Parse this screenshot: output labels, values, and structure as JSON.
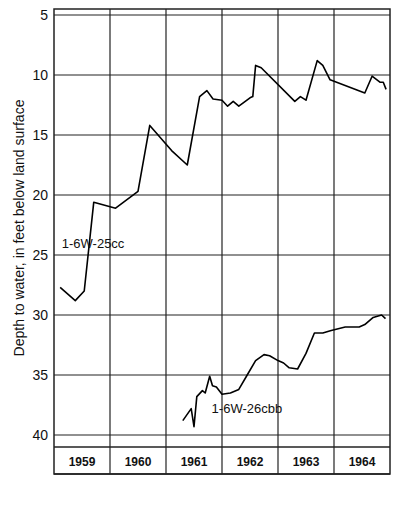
{
  "chart_data": {
    "type": "line",
    "y_label": "Depth to water, in feet below land surface",
    "xlim": [
      1959,
      1965
    ],
    "xticks": [
      {
        "value": 1959.5,
        "label": "1959"
      },
      {
        "value": 1960.5,
        "label": "1960"
      },
      {
        "value": 1961.5,
        "label": "1961"
      },
      {
        "value": 1962.5,
        "label": "1962"
      },
      {
        "value": 1963.5,
        "label": "1963"
      },
      {
        "value": 1964.5,
        "label": "1964"
      }
    ],
    "ylim": [
      41,
      4.5
    ],
    "yticks": [
      5,
      10,
      15,
      20,
      25,
      30,
      35,
      40
    ],
    "grid": true,
    "series": [
      {
        "name": "1-6W-25cc",
        "color": "#000000",
        "line_style": "solid",
        "x": [
          1959.11,
          1959.38,
          1959.54,
          1959.71,
          1960.1,
          1960.5,
          1960.71,
          1961.1,
          1961.38,
          1961.6,
          1961.73,
          1961.84,
          1962.0,
          1962.1,
          1962.2,
          1962.3,
          1962.5,
          1962.55,
          1962.6,
          1962.7,
          1963.3,
          1963.4,
          1963.5,
          1963.7,
          1963.8,
          1963.93,
          1964.55,
          1964.68,
          1964.82,
          1964.88,
          1964.93
        ],
        "values": [
          27.7,
          28.8,
          28.0,
          20.6,
          21.1,
          19.7,
          14.2,
          16.3,
          17.5,
          11.8,
          11.3,
          12.0,
          12.1,
          12.6,
          12.2,
          12.6,
          11.9,
          11.8,
          9.2,
          9.4,
          12.2,
          11.8,
          12.1,
          8.8,
          9.2,
          10.4,
          11.5,
          10.1,
          10.6,
          10.6,
          11.2
        ]
      },
      {
        "name": "1-6W-26cbb",
        "color": "#000000",
        "line_style": "solid",
        "x": [
          1961.3,
          1961.45,
          1961.5,
          1961.55,
          1961.65,
          1961.7,
          1961.78,
          1961.83,
          1961.9,
          1962.0,
          1962.15,
          1962.3,
          1962.45,
          1962.6,
          1962.75,
          1962.85,
          1963.0,
          1963.1,
          1963.2,
          1963.35,
          1963.5,
          1963.65,
          1963.8,
          1963.95,
          1964.2,
          1964.45,
          1964.55,
          1964.7,
          1964.85,
          1964.92
        ],
        "values": [
          38.8,
          37.8,
          39.3,
          36.8,
          36.3,
          36.5,
          35.1,
          35.9,
          36.0,
          36.6,
          36.5,
          36.2,
          35.0,
          33.8,
          33.3,
          33.4,
          33.8,
          34.0,
          34.4,
          34.5,
          33.2,
          31.5,
          31.5,
          31.3,
          31.0,
          31.0,
          30.8,
          30.2,
          30.0,
          30.3
        ]
      }
    ]
  }
}
